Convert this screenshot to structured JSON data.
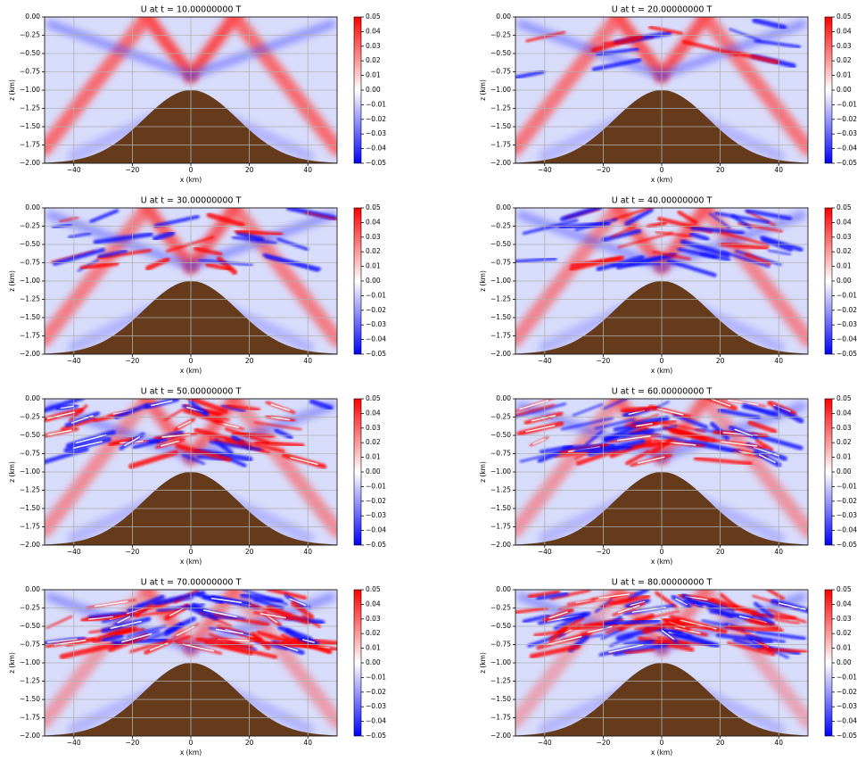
{
  "chart_data": [
    {
      "type": "heatmap",
      "title": "U at t = 10.00000000 T",
      "xlabel": "x (km)",
      "ylabel": "z (km)",
      "xlim": [
        -50,
        50
      ],
      "ylim": [
        -2,
        0
      ],
      "grid": true,
      "xticks": [
        {
          "value": -40,
          "label": "−40"
        },
        {
          "value": -20,
          "label": "−20"
        },
        0,
        20,
        40
      ],
      "yticks": [
        {
          "value": 0,
          "label": "0.00"
        },
        {
          "value": -0.25,
          "label": "−0.25"
        },
        {
          "value": -0.5,
          "label": "−0.50"
        },
        {
          "value": -0.75,
          "label": "−0.75"
        },
        {
          "value": -1,
          "label": "−1.00"
        },
        {
          "value": -1.25,
          "label": "−1.25"
        },
        {
          "value": -1.5,
          "label": "−1.50"
        },
        {
          "value": -1.75,
          "label": "−1.75"
        },
        {
          "value": -2,
          "label": "−2.00"
        }
      ],
      "colorbar": {
        "lim": [
          -0.05,
          0.05
        ],
        "colors": [
          "#0000ff",
          "#ffffff",
          "#ff0000"
        ],
        "ticks": [
          {
            "value": 0.05,
            "label": "0.05"
          },
          {
            "value": 0.04,
            "label": "0.04"
          },
          {
            "value": 0.03,
            "label": "0.03"
          },
          {
            "value": 0.02,
            "label": "0.02"
          },
          {
            "value": 0.01,
            "label": "0.01"
          },
          {
            "value": 0,
            "label": "0.00"
          },
          {
            "value": -0.01,
            "label": "−0.01"
          },
          {
            "value": -0.02,
            "label": "−0.02"
          },
          {
            "value": -0.03,
            "label": "−0.03"
          },
          {
            "value": -0.04,
            "label": "−0.04"
          },
          {
            "value": -0.05,
            "label": "−0.05"
          }
        ]
      }
    },
    {
      "type": "heatmap",
      "title": "U at t = 20.00000000 T",
      "xlabel": "x (km)",
      "ylabel": "z (km)",
      "xlim": [
        -50,
        50
      ],
      "ylim": [
        -2,
        0
      ],
      "grid": true,
      "xticks": [
        {
          "value": -40,
          "label": "−40"
        },
        {
          "value": -20,
          "label": "−20"
        },
        0,
        20,
        40
      ],
      "yticks": [
        {
          "value": 0,
          "label": "0.00"
        },
        {
          "value": -0.25,
          "label": "−0.25"
        },
        {
          "value": -0.5,
          "label": "−0.50"
        },
        {
          "value": -0.75,
          "label": "−0.75"
        },
        {
          "value": -1,
          "label": "−1.00"
        },
        {
          "value": -1.25,
          "label": "−1.25"
        },
        {
          "value": -1.5,
          "label": "−1.50"
        },
        {
          "value": -1.75,
          "label": "−1.75"
        },
        {
          "value": -2,
          "label": "−2.00"
        }
      ],
      "colorbar": {
        "lim": [
          -0.05,
          0.05
        ],
        "colors": [
          "#0000ff",
          "#ffffff",
          "#ff0000"
        ],
        "ticks": [
          {
            "value": 0.05,
            "label": "0.05"
          },
          {
            "value": 0.04,
            "label": "0.04"
          },
          {
            "value": 0.03,
            "label": "0.03"
          },
          {
            "value": 0.02,
            "label": "0.02"
          },
          {
            "value": 0.01,
            "label": "0.01"
          },
          {
            "value": 0,
            "label": "0.00"
          },
          {
            "value": -0.01,
            "label": "−0.01"
          },
          {
            "value": -0.02,
            "label": "−0.02"
          },
          {
            "value": -0.03,
            "label": "−0.03"
          },
          {
            "value": -0.04,
            "label": "−0.04"
          },
          {
            "value": -0.05,
            "label": "−0.05"
          }
        ]
      }
    },
    {
      "type": "heatmap",
      "title": "U at t = 30.00000000 T",
      "xlabel": "x (km)",
      "ylabel": "z (km)",
      "xlim": [
        -50,
        50
      ],
      "ylim": [
        -2,
        0
      ],
      "grid": true,
      "xticks": [
        {
          "value": -40,
          "label": "−40"
        },
        {
          "value": -20,
          "label": "−20"
        },
        0,
        20,
        40
      ],
      "yticks": [
        {
          "value": 0,
          "label": "0.00"
        },
        {
          "value": -0.25,
          "label": "−0.25"
        },
        {
          "value": -0.5,
          "label": "−0.50"
        },
        {
          "value": -0.75,
          "label": "−0.75"
        },
        {
          "value": -1,
          "label": "−1.00"
        },
        {
          "value": -1.25,
          "label": "−1.25"
        },
        {
          "value": -1.5,
          "label": "−1.50"
        },
        {
          "value": -1.75,
          "label": "−1.75"
        },
        {
          "value": -2,
          "label": "−2.00"
        }
      ],
      "colorbar": {
        "lim": [
          -0.05,
          0.05
        ],
        "colors": [
          "#0000ff",
          "#ffffff",
          "#ff0000"
        ],
        "ticks": [
          {
            "value": 0.05,
            "label": "0.05"
          },
          {
            "value": 0.04,
            "label": "0.04"
          },
          {
            "value": 0.03,
            "label": "0.03"
          },
          {
            "value": 0.02,
            "label": "0.02"
          },
          {
            "value": 0.01,
            "label": "0.01"
          },
          {
            "value": 0,
            "label": "0.00"
          },
          {
            "value": -0.01,
            "label": "−0.01"
          },
          {
            "value": -0.02,
            "label": "−0.02"
          },
          {
            "value": -0.03,
            "label": "−0.03"
          },
          {
            "value": -0.04,
            "label": "−0.04"
          },
          {
            "value": -0.05,
            "label": "−0.05"
          }
        ]
      }
    },
    {
      "type": "heatmap",
      "title": "U at t = 40.00000000 T",
      "xlabel": "x (km)",
      "ylabel": "z (km)",
      "xlim": [
        -50,
        50
      ],
      "ylim": [
        -2,
        0
      ],
      "grid": true,
      "xticks": [
        {
          "value": -40,
          "label": "−40"
        },
        {
          "value": -20,
          "label": "−20"
        },
        0,
        20,
        40
      ],
      "yticks": [
        {
          "value": 0,
          "label": "0.00"
        },
        {
          "value": -0.25,
          "label": "−0.25"
        },
        {
          "value": -0.5,
          "label": "−0.50"
        },
        {
          "value": -0.75,
          "label": "−0.75"
        },
        {
          "value": -1,
          "label": "−1.00"
        },
        {
          "value": -1.25,
          "label": "−1.25"
        },
        {
          "value": -1.5,
          "label": "−1.50"
        },
        {
          "value": -1.75,
          "label": "−1.75"
        },
        {
          "value": -2,
          "label": "−2.00"
        }
      ],
      "colorbar": {
        "lim": [
          -0.05,
          0.05
        ],
        "colors": [
          "#0000ff",
          "#ffffff",
          "#ff0000"
        ],
        "ticks": [
          {
            "value": 0.05,
            "label": "0.05"
          },
          {
            "value": 0.04,
            "label": "0.04"
          },
          {
            "value": 0.03,
            "label": "0.03"
          },
          {
            "value": 0.02,
            "label": "0.02"
          },
          {
            "value": 0.01,
            "label": "0.01"
          },
          {
            "value": 0,
            "label": "0.00"
          },
          {
            "value": -0.01,
            "label": "−0.01"
          },
          {
            "value": -0.02,
            "label": "−0.02"
          },
          {
            "value": -0.03,
            "label": "−0.03"
          },
          {
            "value": -0.04,
            "label": "−0.04"
          },
          {
            "value": -0.05,
            "label": "−0.05"
          }
        ]
      }
    },
    {
      "type": "heatmap",
      "title": "U at t = 50.00000000 T",
      "xlabel": "x (km)",
      "ylabel": "z (km)",
      "xlim": [
        -50,
        50
      ],
      "ylim": [
        -2,
        0
      ],
      "grid": true,
      "xticks": [
        {
          "value": -40,
          "label": "−40"
        },
        {
          "value": -20,
          "label": "−20"
        },
        0,
        20,
        40
      ],
      "yticks": [
        {
          "value": 0,
          "label": "0.00"
        },
        {
          "value": -0.25,
          "label": "−0.25"
        },
        {
          "value": -0.5,
          "label": "−0.50"
        },
        {
          "value": -0.75,
          "label": "−0.75"
        },
        {
          "value": -1,
          "label": "−1.00"
        },
        {
          "value": -1.25,
          "label": "−1.25"
        },
        {
          "value": -1.5,
          "label": "−1.50"
        },
        {
          "value": -1.75,
          "label": "−1.75"
        },
        {
          "value": -2,
          "label": "−2.00"
        }
      ],
      "colorbar": {
        "lim": [
          -0.05,
          0.05
        ],
        "colors": [
          "#0000ff",
          "#ffffff",
          "#ff0000"
        ],
        "ticks": [
          {
            "value": 0.05,
            "label": "0.05"
          },
          {
            "value": 0.04,
            "label": "0.04"
          },
          {
            "value": 0.03,
            "label": "0.03"
          },
          {
            "value": 0.02,
            "label": "0.02"
          },
          {
            "value": 0.01,
            "label": "0.01"
          },
          {
            "value": 0,
            "label": "0.00"
          },
          {
            "value": -0.01,
            "label": "−0.01"
          },
          {
            "value": -0.02,
            "label": "−0.02"
          },
          {
            "value": -0.03,
            "label": "−0.03"
          },
          {
            "value": -0.04,
            "label": "−0.04"
          },
          {
            "value": -0.05,
            "label": "−0.05"
          }
        ]
      }
    },
    {
      "type": "heatmap",
      "title": "U at t = 60.00000000 T",
      "xlabel": "x (km)",
      "ylabel": "z (km)",
      "xlim": [
        -50,
        50
      ],
      "ylim": [
        -2,
        0
      ],
      "grid": true,
      "xticks": [
        {
          "value": -40,
          "label": "−40"
        },
        {
          "value": -20,
          "label": "−20"
        },
        0,
        20,
        40
      ],
      "yticks": [
        {
          "value": 0,
          "label": "0.00"
        },
        {
          "value": -0.25,
          "label": "−0.25"
        },
        {
          "value": -0.5,
          "label": "−0.50"
        },
        {
          "value": -0.75,
          "label": "−0.75"
        },
        {
          "value": -1,
          "label": "−1.00"
        },
        {
          "value": -1.25,
          "label": "−1.25"
        },
        {
          "value": -1.5,
          "label": "−1.50"
        },
        {
          "value": -1.75,
          "label": "−1.75"
        },
        {
          "value": -2,
          "label": "−2.00"
        }
      ],
      "colorbar": {
        "lim": [
          -0.05,
          0.05
        ],
        "colors": [
          "#0000ff",
          "#ffffff",
          "#ff0000"
        ],
        "ticks": [
          {
            "value": 0.05,
            "label": "0.05"
          },
          {
            "value": 0.04,
            "label": "0.04"
          },
          {
            "value": 0.03,
            "label": "0.03"
          },
          {
            "value": 0.02,
            "label": "0.02"
          },
          {
            "value": 0.01,
            "label": "0.01"
          },
          {
            "value": 0,
            "label": "0.00"
          },
          {
            "value": -0.01,
            "label": "−0.01"
          },
          {
            "value": -0.02,
            "label": "−0.02"
          },
          {
            "value": -0.03,
            "label": "−0.03"
          },
          {
            "value": -0.04,
            "label": "−0.04"
          },
          {
            "value": -0.05,
            "label": "−0.05"
          }
        ]
      }
    },
    {
      "type": "heatmap",
      "title": "U at t = 70.00000000 T",
      "xlabel": "x (km)",
      "ylabel": "z (km)",
      "xlim": [
        -50,
        50
      ],
      "ylim": [
        -2,
        0
      ],
      "grid": true,
      "xticks": [
        {
          "value": -40,
          "label": "−40"
        },
        {
          "value": -20,
          "label": "−20"
        },
        0,
        20,
        40
      ],
      "yticks": [
        {
          "value": 0,
          "label": "0.00"
        },
        {
          "value": -0.25,
          "label": "−0.25"
        },
        {
          "value": -0.5,
          "label": "−0.50"
        },
        {
          "value": -0.75,
          "label": "−0.75"
        },
        {
          "value": -1,
          "label": "−1.00"
        },
        {
          "value": -1.25,
          "label": "−1.25"
        },
        {
          "value": -1.5,
          "label": "−1.50"
        },
        {
          "value": -1.75,
          "label": "−1.75"
        },
        {
          "value": -2,
          "label": "−2.00"
        }
      ],
      "colorbar": {
        "lim": [
          -0.05,
          0.05
        ],
        "colors": [
          "#0000ff",
          "#ffffff",
          "#ff0000"
        ],
        "ticks": [
          {
            "value": 0.05,
            "label": "0.05"
          },
          {
            "value": 0.04,
            "label": "0.04"
          },
          {
            "value": 0.03,
            "label": "0.03"
          },
          {
            "value": 0.02,
            "label": "0.02"
          },
          {
            "value": 0.01,
            "label": "0.01"
          },
          {
            "value": 0,
            "label": "0.00"
          },
          {
            "value": -0.01,
            "label": "−0.01"
          },
          {
            "value": -0.02,
            "label": "−0.02"
          },
          {
            "value": -0.03,
            "label": "−0.03"
          },
          {
            "value": -0.04,
            "label": "−0.04"
          },
          {
            "value": -0.05,
            "label": "−0.05"
          }
        ]
      }
    },
    {
      "type": "heatmap",
      "title": "U at t = 80.00000000 T",
      "xlabel": "x (km)",
      "ylabel": "z (km)",
      "xlim": [
        -50,
        50
      ],
      "ylim": [
        -2,
        0
      ],
      "grid": true,
      "xticks": [
        {
          "value": -40,
          "label": "−40"
        },
        {
          "value": -20,
          "label": "−20"
        },
        0,
        20,
        40
      ],
      "yticks": [
        {
          "value": 0,
          "label": "0.00"
        },
        {
          "value": -0.25,
          "label": "−0.25"
        },
        {
          "value": -0.5,
          "label": "−0.50"
        },
        {
          "value": -0.75,
          "label": "−0.75"
        },
        {
          "value": -1,
          "label": "−1.00"
        },
        {
          "value": -1.25,
          "label": "−1.25"
        },
        {
          "value": -1.5,
          "label": "−1.50"
        },
        {
          "value": -1.75,
          "label": "−1.75"
        },
        {
          "value": -2,
          "label": "−2.00"
        }
      ],
      "colorbar": {
        "lim": [
          -0.05,
          0.05
        ],
        "colors": [
          "#0000ff",
          "#ffffff",
          "#ff0000"
        ],
        "ticks": [
          {
            "value": 0.05,
            "label": "0.05"
          },
          {
            "value": 0.04,
            "label": "0.04"
          },
          {
            "value": 0.03,
            "label": "0.03"
          },
          {
            "value": 0.02,
            "label": "0.02"
          },
          {
            "value": 0.01,
            "label": "0.01"
          },
          {
            "value": 0,
            "label": "0.00"
          },
          {
            "value": -0.01,
            "label": "−0.01"
          },
          {
            "value": -0.02,
            "label": "−0.02"
          },
          {
            "value": -0.03,
            "label": "−0.03"
          },
          {
            "value": -0.04,
            "label": "−0.04"
          },
          {
            "value": -0.05,
            "label": "−0.05"
          }
        ]
      }
    }
  ]
}
